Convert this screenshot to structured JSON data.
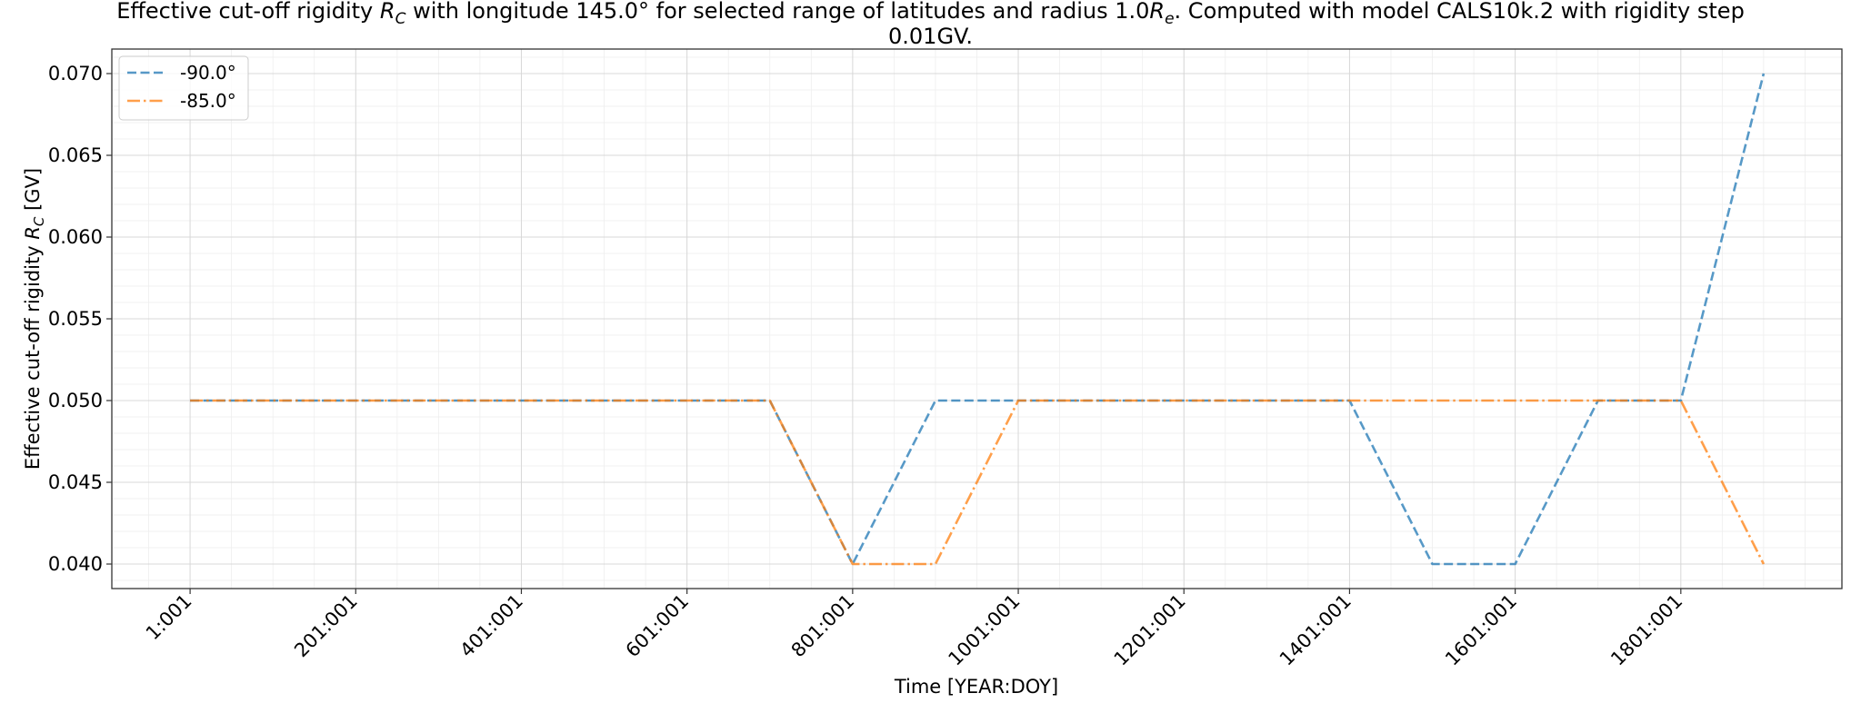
{
  "chart_data": {
    "type": "line",
    "title": "Effective cut-off rigidity R_C with longitude 145.0° for selected range of latitudes and radius 1.0R_e. Computed with model CALS10k.2 with rigidity step 0.01GV.",
    "title_parts": {
      "l1a": "Effective cut-off rigidity ",
      "R": "R",
      "C": "C",
      "l1b": " with longitude 145.0° for selected range of latitudes and radius 1.0",
      "e": "e",
      "l1c": ". Computed with model CALS10k.2 with rigidity step",
      "l2": "0.01GV."
    },
    "xlabel": "Time [YEAR:DOY]",
    "ylabel": "Effective cut-off rigidity R_C [GV]",
    "ylabel_parts": {
      "a": "Effective cut-off rigidity ",
      "R": "R",
      "C": "C",
      "b": " [GV]"
    },
    "x": [
      "1:001",
      "101:001",
      "201:001",
      "301:001",
      "401:001",
      "501:001",
      "601:001",
      "701:001",
      "801:001",
      "901:001",
      "1001:001",
      "1101:001",
      "1201:001",
      "1301:001",
      "1401:001",
      "1501:001",
      "1601:001",
      "1701:001",
      "1801:001",
      "1901:001"
    ],
    "x_years": [
      1,
      101,
      201,
      301,
      401,
      501,
      601,
      701,
      801,
      901,
      1001,
      1101,
      1201,
      1301,
      1401,
      1501,
      1601,
      1701,
      1801,
      1901
    ],
    "x_ticks": [
      "1:001",
      "201:001",
      "401:001",
      "601:001",
      "801:001",
      "1001:001",
      "1201:001",
      "1401:001",
      "1601:001",
      "1801:001"
    ],
    "x_tick_years": [
      1,
      201,
      401,
      601,
      801,
      1001,
      1201,
      1401,
      1601,
      1801
    ],
    "xlim_years": [
      -93.5,
      1995.5
    ],
    "y_ticks": [
      "0.040",
      "0.045",
      "0.050",
      "0.055",
      "0.060",
      "0.065",
      "0.070"
    ],
    "ylim": [
      0.0385,
      0.0715
    ],
    "series": [
      {
        "name": "-90.0°",
        "color": "#1f77b4",
        "style": "dashed",
        "values": [
          0.05,
          0.05,
          0.05,
          0.05,
          0.05,
          0.05,
          0.05,
          0.05,
          0.04,
          0.05,
          0.05,
          0.05,
          0.05,
          0.05,
          0.05,
          0.04,
          0.04,
          0.05,
          0.05,
          0.07
        ]
      },
      {
        "name": "-85.0°",
        "color": "#ff7f0e",
        "style": "dashdot",
        "values": [
          0.05,
          0.05,
          0.05,
          0.05,
          0.05,
          0.05,
          0.05,
          0.05,
          0.04,
          0.04,
          0.05,
          0.05,
          0.05,
          0.05,
          0.05,
          0.05,
          0.05,
          0.05,
          0.05,
          0.04
        ]
      }
    ],
    "grid": true,
    "legend_position": "top-left"
  }
}
